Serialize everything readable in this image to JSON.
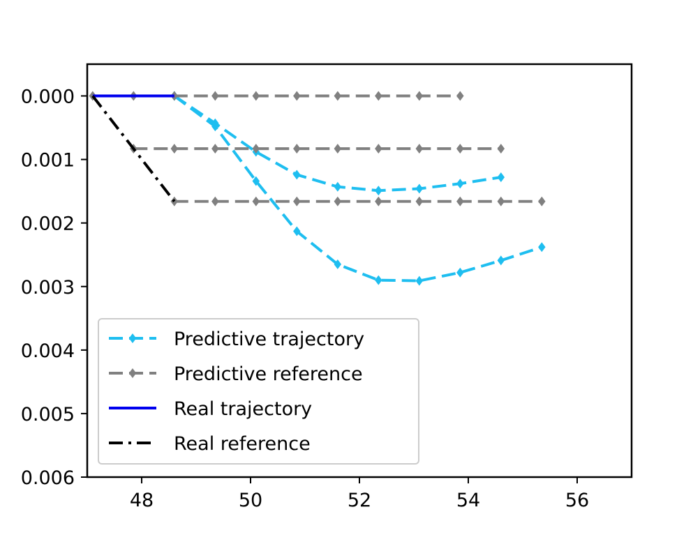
{
  "chart_data": {
    "type": "line",
    "title": "",
    "xlabel": "",
    "ylabel": "",
    "xlim": [
      47.0,
      57.0
    ],
    "ylim": [
      -0.006,
      0.0005
    ],
    "xticks": [
      48,
      50,
      52,
      54,
      56
    ],
    "xtick_labels": [
      "48",
      "50",
      "52",
      "54",
      "56"
    ],
    "yticks": [
      0.0,
      -0.001,
      -0.002,
      -0.003,
      -0.004,
      -0.005,
      -0.006
    ],
    "ytick_labels": [
      "0.000",
      "0.001",
      "0.002",
      "0.003",
      "0.004",
      "0.005",
      "0.006"
    ],
    "grid": false,
    "legend_position": "lower-left",
    "series": [
      {
        "name": "Predictive trajectory",
        "style": "dashed",
        "marker": "diamond",
        "color": "#1EBEF0",
        "segments": [
          {
            "x": [
              48.6,
              49.35,
              50.1,
              50.85,
              51.6,
              52.35,
              53.1,
              53.85,
              54.6
            ],
            "y": [
              0.0,
              -0.00043,
              -0.00088,
              -0.00124,
              -0.00143,
              -0.00149,
              -0.00146,
              -0.00138,
              -0.00128
            ]
          },
          {
            "x": [
              48.6,
              49.35,
              50.1,
              50.85,
              51.6,
              52.35,
              53.1,
              53.85,
              54.6,
              55.35
            ],
            "y": [
              0.0,
              -0.00048,
              -0.00134,
              -0.00213,
              -0.00265,
              -0.0029,
              -0.00291,
              -0.00278,
              -0.00259,
              -0.00238
            ]
          }
        ]
      },
      {
        "name": "Predictive reference",
        "style": "dashed",
        "marker": "diamond",
        "color": "#808080",
        "segments": [
          {
            "x": [
              47.1,
              47.85,
              48.6,
              49.35,
              50.1,
              50.85,
              51.6,
              52.35,
              53.1,
              53.85
            ],
            "y": [
              0.0,
              0.0,
              0.0,
              0.0,
              0.0,
              0.0,
              0.0,
              0.0,
              0.0,
              0.0
            ]
          },
          {
            "x": [
              47.85,
              48.6,
              49.35,
              50.1,
              50.85,
              51.6,
              52.35,
              53.1,
              53.85,
              54.6
            ],
            "y": [
              -0.00083,
              -0.00083,
              -0.00083,
              -0.00083,
              -0.00083,
              -0.00083,
              -0.00083,
              -0.00083,
              -0.00083,
              -0.00083
            ]
          },
          {
            "x": [
              48.6,
              49.35,
              50.1,
              50.85,
              51.6,
              52.35,
              53.1,
              53.85,
              54.6,
              55.35
            ],
            "y": [
              -0.00166,
              -0.00166,
              -0.00166,
              -0.00166,
              -0.00166,
              -0.00166,
              -0.00166,
              -0.00166,
              -0.00166,
              -0.00166
            ]
          }
        ]
      },
      {
        "name": "Real trajectory",
        "style": "solid",
        "marker": "none",
        "color": "#0000EE",
        "segments": [
          {
            "x": [
              47.1,
              47.85,
              48.6
            ],
            "y": [
              0.0,
              0.0,
              0.0
            ]
          }
        ]
      },
      {
        "name": "Real reference",
        "style": "dashdot",
        "marker": "none",
        "color": "#000000",
        "segments": [
          {
            "x": [
              47.1,
              47.85,
              48.6
            ],
            "y": [
              0.0,
              -0.00083,
              -0.00166
            ]
          }
        ]
      }
    ]
  }
}
